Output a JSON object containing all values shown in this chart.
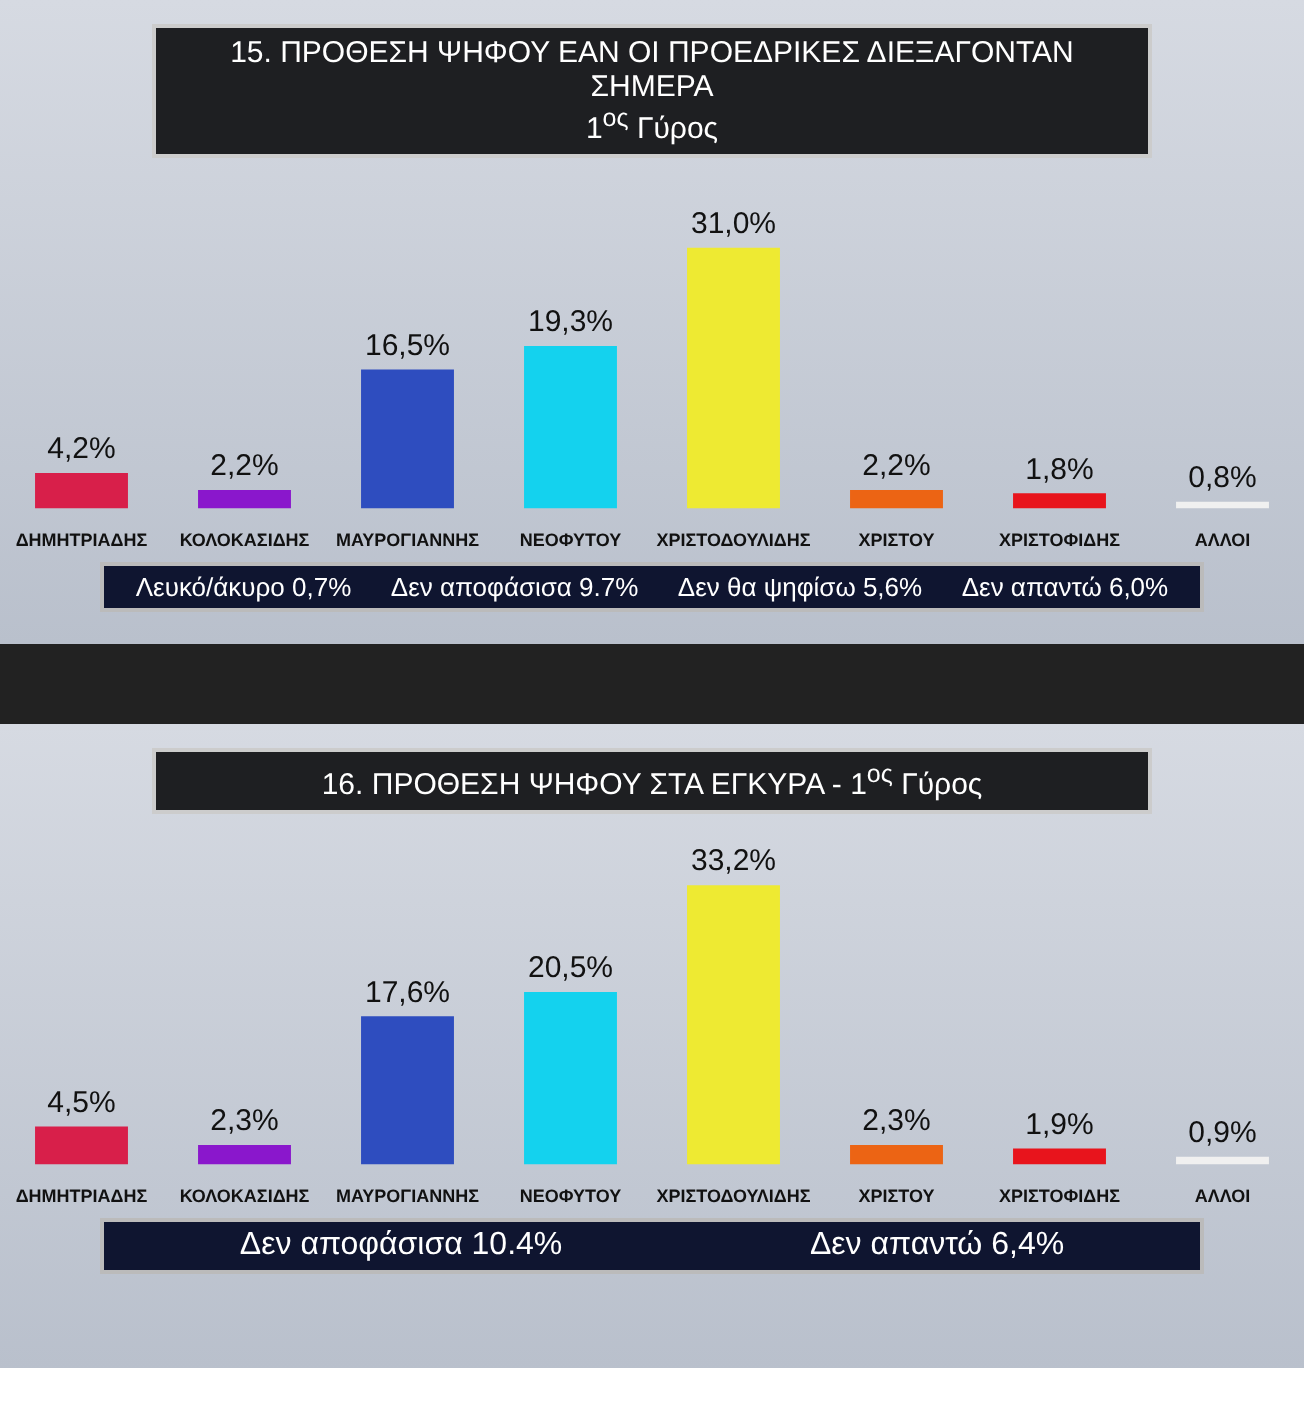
{
  "chart_data": [
    {
      "type": "bar",
      "title": "15. ΠΡΟΘΕΣΗ ΨΗΦΟΥ ΕΑΝ ΟΙ ΠΡΟΕΔΡΙΚΕΣ ΔΙΕΞΑΓΟΝΤΑΝ ΣΗΜΕΡΑ",
      "subtitle": "1$^{ος}$ Γύρος",
      "categories": [
        "ΔΗΜΗΤΡΙΑΔΗΣ",
        "ΚΟΛΟΚΑΣΙΔΗΣ",
        "ΜΑΥΡΟΓΙΑΝΝΗΣ",
        "ΝΕΟΦΥΤΟΥ",
        "ΧΡΙΣΤΟΔΟΥΛΙΔΗΣ",
        "ΧΡΙΣΤΟΥ",
        "ΧΡΙΣΤΟΦΙΔΗΣ",
        "ΑΛΛΟΙ"
      ],
      "values": [
        4.2,
        2.2,
        16.5,
        19.3,
        31.0,
        2.2,
        1.8,
        0.8
      ],
      "value_labels": [
        "4,2%",
        "2,2%",
        "16,5%",
        "19,3%",
        "31,0%",
        "2,2%",
        "1,8%",
        "0,8%"
      ],
      "colors": [
        "#d81f4a",
        "#8a17cc",
        "#2e4dbf",
        "#14d2ee",
        "#eeea32",
        "#ec6414",
        "#e8141c",
        "#f0f0f0"
      ],
      "annotations": [
        "Λευκό/άκυρο 0,7%",
        "Δεν αποφάσισα 9.7%",
        "Δεν θα ψηφίσω 5,6%",
        "Δεν απαντώ 6,0%"
      ]
    },
    {
      "type": "bar",
      "title": "16. ΠΡΟΘΕΣΗ ΨΗΦΟΥ ΣΤΑ ΕΓΚΥΡΑ - 1$^{ος}$ Γύρος",
      "categories": [
        "ΔΗΜΗΤΡΙΑΔΗΣ",
        "ΚΟΛΟΚΑΣΙΔΗΣ",
        "ΜΑΥΡΟΓΙΑΝΝΗΣ",
        "ΝΕΟΦΥΤΟΥ",
        "ΧΡΙΣΤΟΔΟΥΛΙΔΗΣ",
        "ΧΡΙΣΤΟΥ",
        "ΧΡΙΣΤΟΦΙΔΗΣ",
        "ΑΛΛΟΙ"
      ],
      "values": [
        4.5,
        2.3,
        17.6,
        20.5,
        33.2,
        2.3,
        1.9,
        0.9
      ],
      "value_labels": [
        "4,5%",
        "2,3%",
        "17,6%",
        "20,5%",
        "33,2%",
        "2,3%",
        "1,9%",
        "0,9%"
      ],
      "colors": [
        "#d81f4a",
        "#8a17cc",
        "#2e4dbf",
        "#14d2ee",
        "#eeea32",
        "#ec6414",
        "#e8141c",
        "#f0f0f0"
      ],
      "annotations": [
        "Δεν αποφάσισα 10.4%",
        "Δεν απαντώ 6,4%"
      ]
    }
  ]
}
